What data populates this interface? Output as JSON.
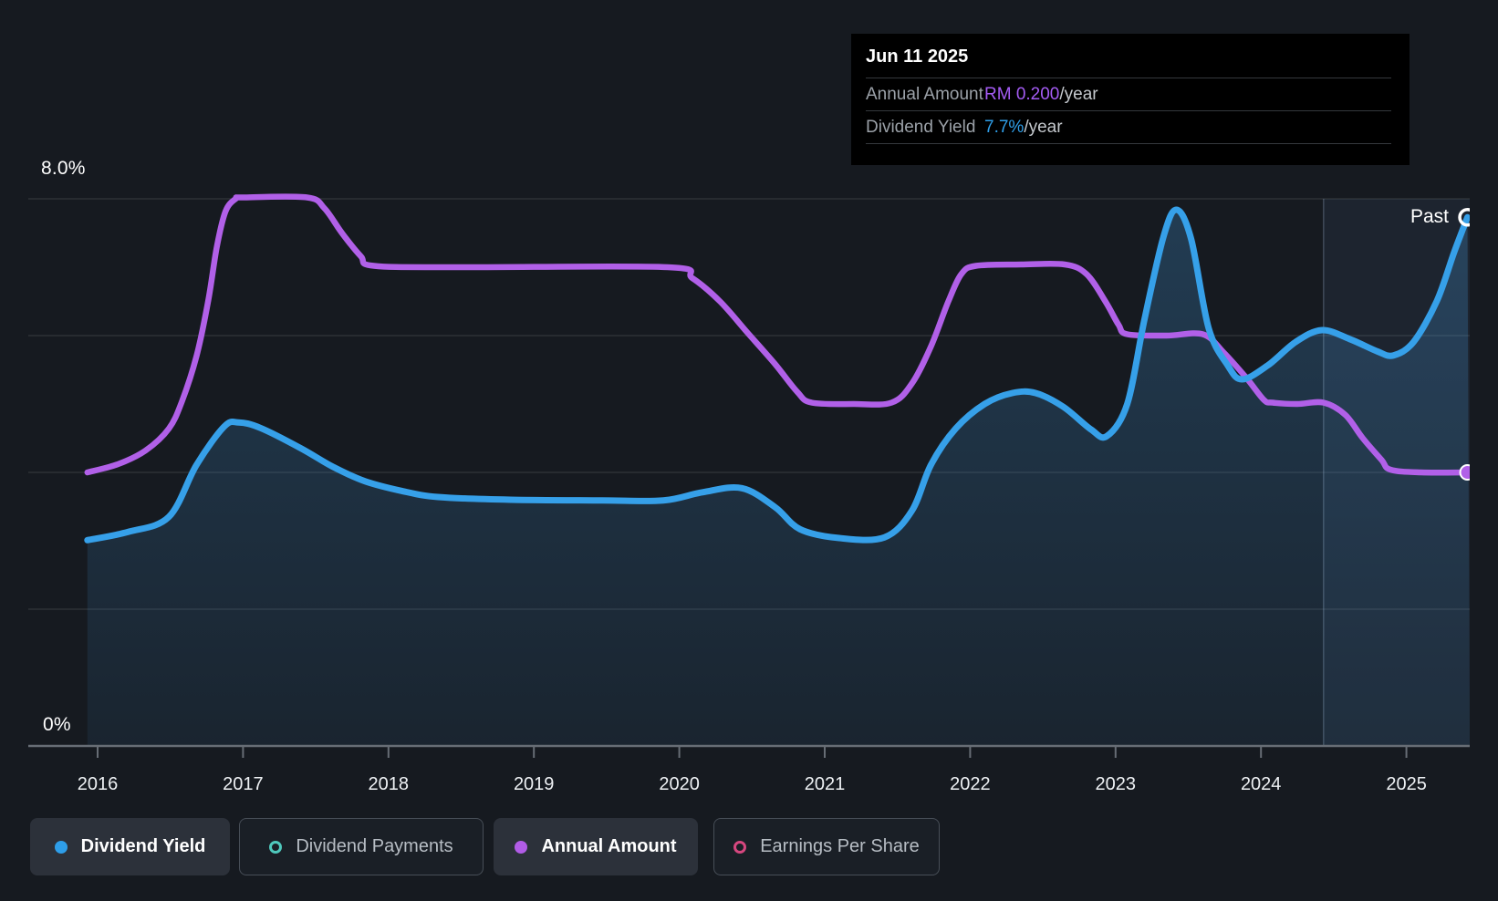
{
  "colors": {
    "background": "#161a20",
    "dividend_yield_line": "#36a0e9",
    "annual_amount_line": "#b160e8",
    "dividend_payments": "#4fc8bc",
    "earnings_per_share": "#d6477f",
    "tooltip_value_amount": "#a55cf5",
    "tooltip_value_yield": "#2f9fe9",
    "area_fill_base": "#3e8cc9",
    "gridline": "rgba(255,255,255,0.10)",
    "axis": "#676d75",
    "past_divider": "rgba(160,190,220,0.28)",
    "past_highlight": "rgba(115,170,230,0.08)"
  },
  "tooltip": {
    "date": "Jun 11 2025",
    "rows": [
      {
        "label": "Annual Amount",
        "value": "RM 0.200",
        "suffix": "/year"
      },
      {
        "label": "Dividend Yield",
        "value": "7.7%",
        "suffix": "/year"
      }
    ]
  },
  "past_label": "Past",
  "y_axis": {
    "top": "8.0%",
    "bottom": "0%"
  },
  "x_axis": {
    "years": [
      "2016",
      "2017",
      "2018",
      "2019",
      "2020",
      "2021",
      "2022",
      "2023",
      "2024",
      "2025"
    ]
  },
  "legend": [
    {
      "label": "Dividend Yield",
      "color": "#2e9ee9",
      "marker": "filled",
      "active": true
    },
    {
      "label": "Dividend Payments",
      "color": "#4fc8bc",
      "marker": "hollow",
      "active": false
    },
    {
      "label": "Annual Amount",
      "color": "#b15ce6",
      "marker": "filled",
      "active": true
    },
    {
      "label": "Earnings Per Share",
      "color": "#d6477f",
      "marker": "hollow",
      "active": false
    }
  ],
  "chart_data": {
    "type": "line",
    "xlim": [
      2015.92,
      2025.44
    ],
    "ylim_percent": [
      0,
      8
    ],
    "gridline_step_percent": 2,
    "x_ticks": [
      2016,
      2017,
      2018,
      2019,
      2020,
      2021,
      2022,
      2023,
      2024,
      2025
    ],
    "y_tick_labels": [
      "8.0%",
      "0%"
    ],
    "past_divider_year": 2024.43,
    "hover_point": {
      "date": "Jun 11 2025",
      "annual_amount": "RM 0.200/year",
      "dividend_yield": "7.7%/year"
    },
    "series": [
      {
        "name": "Dividend Yield",
        "unit": "%",
        "visible": true,
        "area_fill": true,
        "points": [
          [
            2015.93,
            3.01
          ],
          [
            2016.21,
            3.13
          ],
          [
            2016.49,
            3.35
          ],
          [
            2016.68,
            4.11
          ],
          [
            2016.87,
            4.67
          ],
          [
            2016.97,
            4.73
          ],
          [
            2017.12,
            4.65
          ],
          [
            2017.4,
            4.35
          ],
          [
            2017.62,
            4.08
          ],
          [
            2017.84,
            3.87
          ],
          [
            2018.09,
            3.73
          ],
          [
            2018.34,
            3.64
          ],
          [
            2018.84,
            3.6
          ],
          [
            2019.47,
            3.59
          ],
          [
            2019.89,
            3.59
          ],
          [
            2020.16,
            3.71
          ],
          [
            2020.43,
            3.77
          ],
          [
            2020.66,
            3.49
          ],
          [
            2020.83,
            3.17
          ],
          [
            2021.1,
            3.04
          ],
          [
            2021.41,
            3.05
          ],
          [
            2021.6,
            3.44
          ],
          [
            2021.73,
            4.11
          ],
          [
            2021.9,
            4.64
          ],
          [
            2022.1,
            5.0
          ],
          [
            2022.29,
            5.16
          ],
          [
            2022.45,
            5.16
          ],
          [
            2022.64,
            4.96
          ],
          [
            2022.83,
            4.63
          ],
          [
            2022.94,
            4.53
          ],
          [
            2023.08,
            5.0
          ],
          [
            2023.2,
            6.25
          ],
          [
            2023.33,
            7.45
          ],
          [
            2023.42,
            7.84
          ],
          [
            2023.52,
            7.41
          ],
          [
            2023.64,
            6.11
          ],
          [
            2023.77,
            5.57
          ],
          [
            2023.87,
            5.36
          ],
          [
            2024.05,
            5.57
          ],
          [
            2024.24,
            5.91
          ],
          [
            2024.42,
            6.08
          ],
          [
            2024.61,
            5.95
          ],
          [
            2024.8,
            5.77
          ],
          [
            2024.91,
            5.71
          ],
          [
            2025.05,
            5.91
          ],
          [
            2025.21,
            6.51
          ],
          [
            2025.33,
            7.23
          ],
          [
            2025.42,
            7.73
          ]
        ]
      },
      {
        "name": "Annual Amount",
        "unit": "RM/year",
        "visible": true,
        "percent_per_unit": 20,
        "points": [
          [
            2015.93,
            0.2
          ],
          [
            2016.14,
            0.206
          ],
          [
            2016.33,
            0.216
          ],
          [
            2016.49,
            0.232
          ],
          [
            2016.58,
            0.252
          ],
          [
            2016.68,
            0.285
          ],
          [
            2016.76,
            0.325
          ],
          [
            2016.82,
            0.365
          ],
          [
            2016.88,
            0.391
          ],
          [
            2016.95,
            0.4
          ],
          [
            2017.0,
            0.401
          ],
          [
            2017.44,
            0.401
          ],
          [
            2017.56,
            0.393
          ],
          [
            2017.68,
            0.375
          ],
          [
            2017.81,
            0.358
          ],
          [
            2017.9,
            0.351
          ],
          [
            2018.5,
            0.35
          ],
          [
            2019.92,
            0.35
          ],
          [
            2020.09,
            0.342
          ],
          [
            2020.28,
            0.325
          ],
          [
            2020.47,
            0.302
          ],
          [
            2020.66,
            0.279
          ],
          [
            2020.81,
            0.259
          ],
          [
            2020.91,
            0.251
          ],
          [
            2021.2,
            0.25
          ],
          [
            2021.46,
            0.251
          ],
          [
            2021.6,
            0.265
          ],
          [
            2021.73,
            0.292
          ],
          [
            2021.85,
            0.325
          ],
          [
            2021.94,
            0.345
          ],
          [
            2022.04,
            0.351
          ],
          [
            2022.35,
            0.352
          ],
          [
            2022.65,
            0.352
          ],
          [
            2022.8,
            0.345
          ],
          [
            2022.93,
            0.325
          ],
          [
            2023.02,
            0.308
          ],
          [
            2023.08,
            0.301
          ],
          [
            2023.35,
            0.3
          ],
          [
            2023.6,
            0.301
          ],
          [
            2023.74,
            0.288
          ],
          [
            2023.9,
            0.269
          ],
          [
            2024.02,
            0.253
          ],
          [
            2024.08,
            0.251
          ],
          [
            2024.25,
            0.25
          ],
          [
            2024.43,
            0.251
          ],
          [
            2024.58,
            0.242
          ],
          [
            2024.7,
            0.225
          ],
          [
            2024.83,
            0.209
          ],
          [
            2024.89,
            0.202
          ],
          [
            2025.1,
            0.2
          ],
          [
            2025.42,
            0.2
          ]
        ]
      },
      {
        "name": "Dividend Payments",
        "visible": false,
        "points": []
      },
      {
        "name": "Earnings Per Share",
        "visible": false,
        "points": []
      }
    ]
  }
}
